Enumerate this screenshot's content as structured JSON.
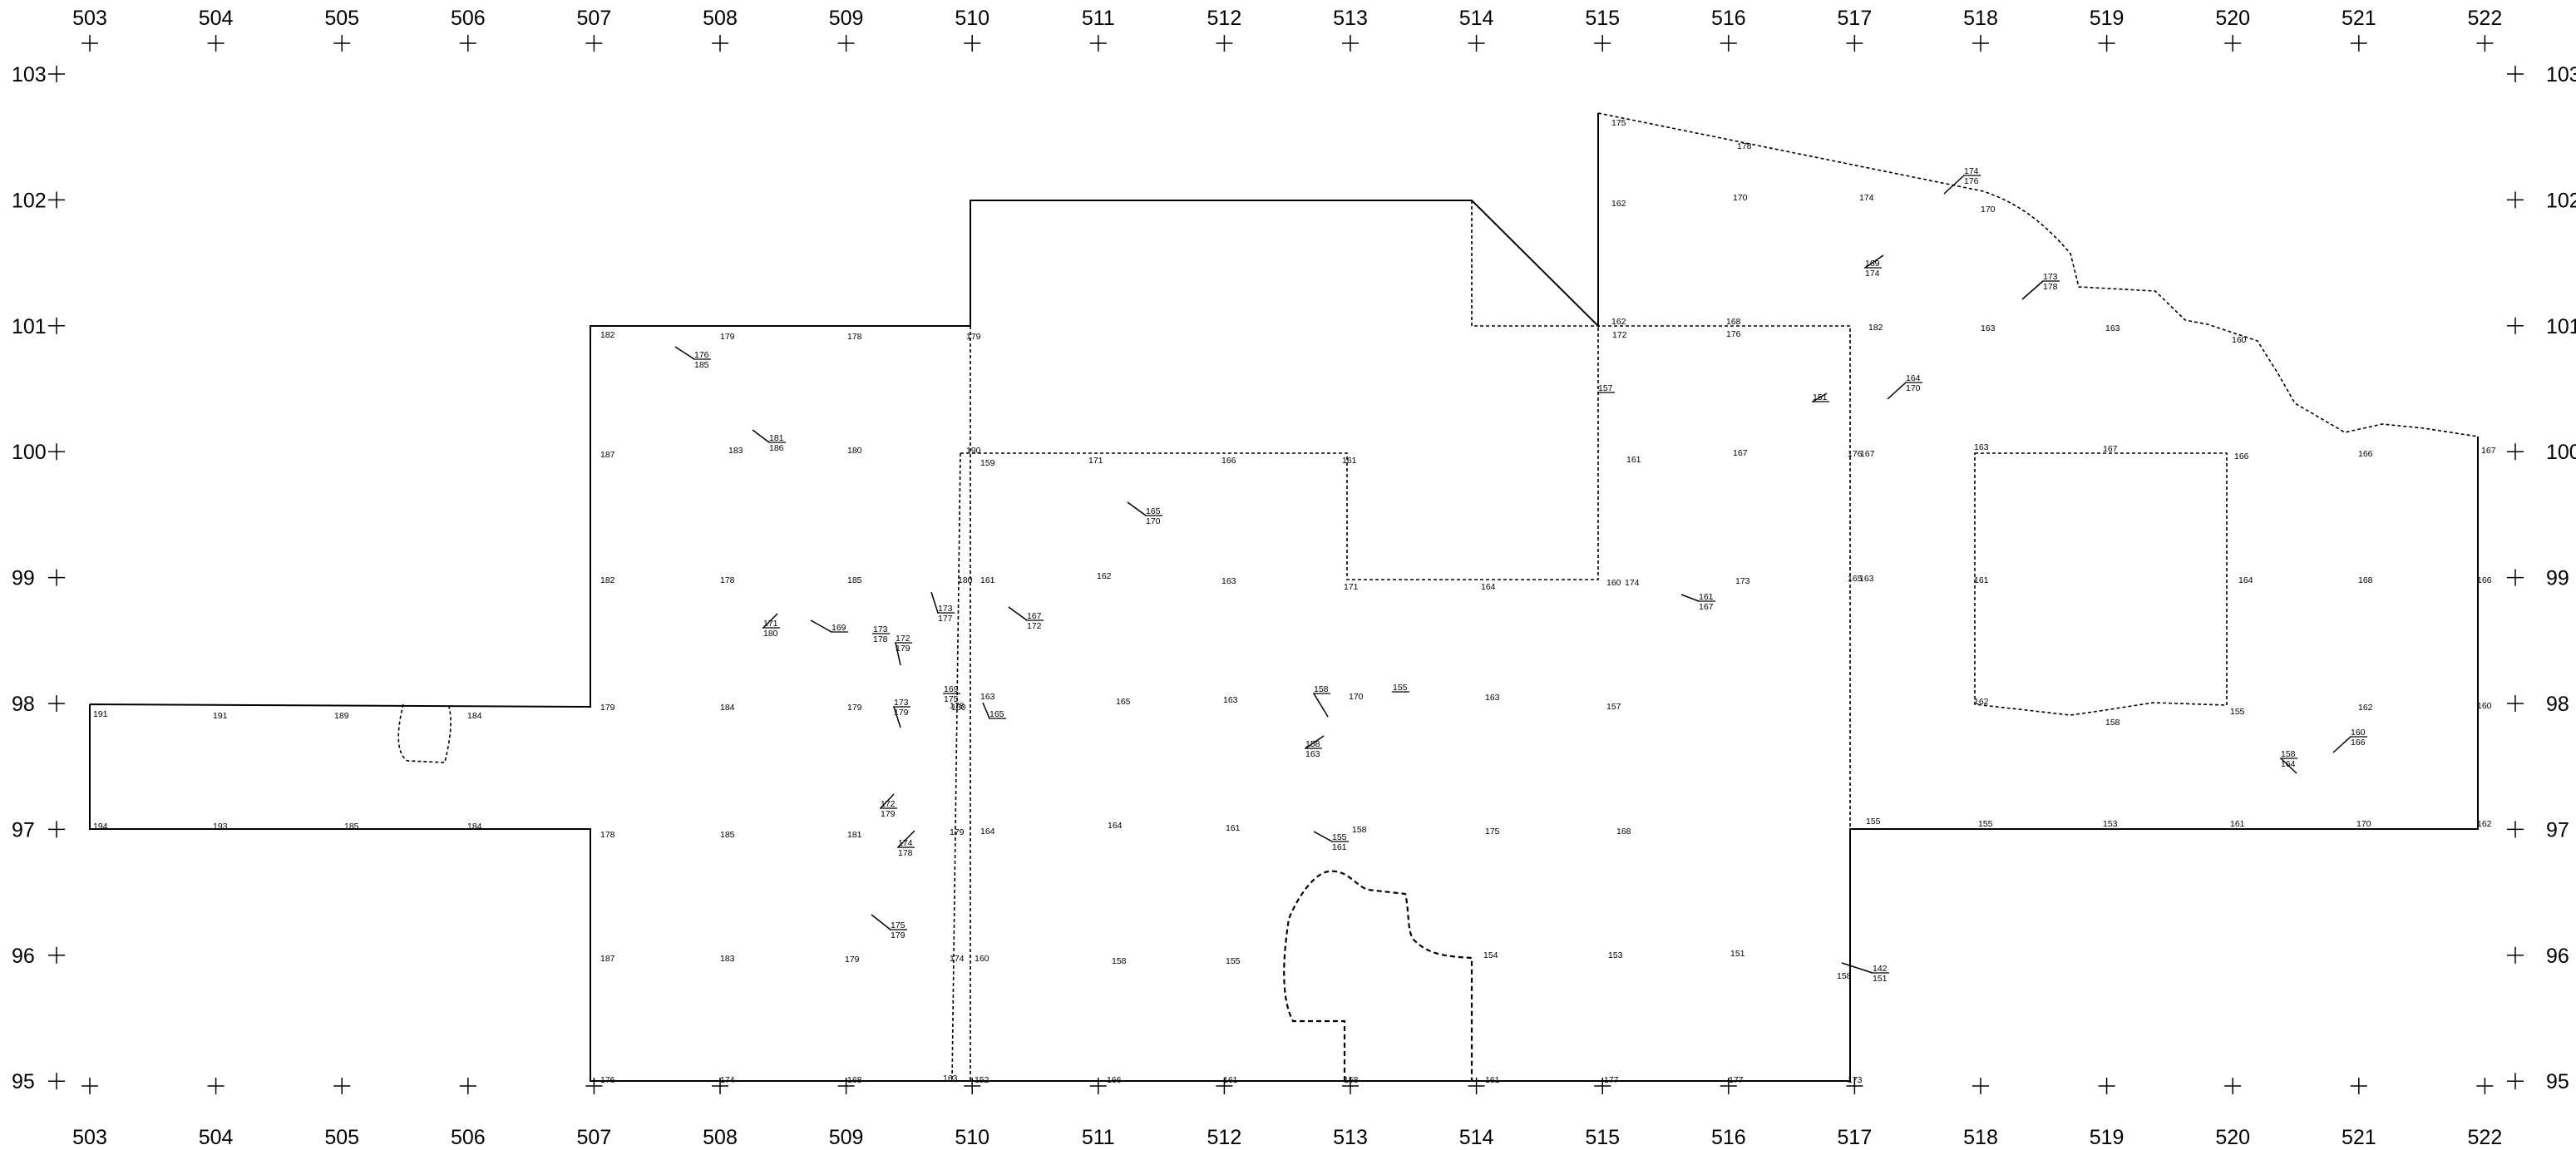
{
  "x_axis": {
    "values": [
      "503",
      "504",
      "505",
      "506",
      "507",
      "508",
      "509",
      "510",
      "511",
      "512",
      "513",
      "514",
      "515",
      "516",
      "517",
      "518",
      "519",
      "520",
      "521",
      "522"
    ]
  },
  "y_axis": {
    "values": [
      "103",
      "102",
      "101",
      "100",
      "99",
      "98",
      "97",
      "96",
      "95"
    ]
  },
  "spot_elevations": [
    "191",
    "191",
    "189",
    "184",
    "194",
    "193",
    "185",
    "184",
    "182",
    "179",
    "178",
    "179",
    "187",
    "183",
    "180",
    "190",
    "182",
    "178",
    "185",
    "180",
    "179",
    "184",
    "179",
    "178",
    "178",
    "185",
    "181",
    "179",
    "187",
    "183",
    "179",
    "174",
    "176",
    "174",
    "168",
    "163",
    "159",
    "171",
    "166",
    "161",
    "161",
    "162",
    "163",
    "171",
    "164",
    "160",
    "163",
    "165",
    "163",
    "170",
    "163",
    "157",
    "164",
    "164",
    "161",
    "158",
    "175",
    "168",
    "160",
    "160",
    "158",
    "155",
    "154",
    "153",
    "151",
    "152",
    "166",
    "161",
    "158",
    "161",
    "177",
    "177",
    "173",
    "175",
    "178",
    "174",
    "170",
    "170",
    "162",
    "162",
    "168",
    "172",
    "176",
    "182",
    "163",
    "163",
    "160",
    "161",
    "167",
    "176",
    "167",
    "163",
    "167",
    "166",
    "166",
    "167",
    "174",
    "173",
    "165",
    "163",
    "161",
    "164",
    "168",
    "166",
    "162",
    "158",
    "155",
    "162",
    "160",
    "155",
    "155",
    "153",
    "161",
    "170",
    "162",
    "158",
    "167",
    "160",
    "155",
    "163"
  ],
  "fraction_labels": [
    {
      "top": "176",
      "bottom": "185"
    },
    {
      "top": "181",
      "bottom": "186"
    },
    {
      "top": "171",
      "bottom": "180"
    },
    {
      "top": "169",
      "bottom": ""
    },
    {
      "top": "173",
      "bottom": "178"
    },
    {
      "top": "172",
      "bottom": "179"
    },
    {
      "top": "173",
      "bottom": "177"
    },
    {
      "top": "167",
      "bottom": "172"
    },
    {
      "top": "165",
      "bottom": "170"
    },
    {
      "top": "169",
      "bottom": "175"
    },
    {
      "top": "173",
      "bottom": "179"
    },
    {
      "top": "165",
      "bottom": ""
    },
    {
      "top": "172",
      "bottom": "179"
    },
    {
      "top": "174",
      "bottom": "178"
    },
    {
      "top": "175",
      "bottom": "179"
    },
    {
      "top": "158",
      "bottom": ""
    },
    {
      "top": "155",
      "bottom": ""
    },
    {
      "top": "158",
      "bottom": "163"
    },
    {
      "top": "155",
      "bottom": "161"
    },
    {
      "top": "161",
      "bottom": "167"
    },
    {
      "top": "142",
      "bottom": "151"
    },
    {
      "top": "174",
      "bottom": "176"
    },
    {
      "top": "169",
      "bottom": "174"
    },
    {
      "top": "173",
      "bottom": "178"
    },
    {
      "top": "164",
      "bottom": "170"
    },
    {
      "top": "151",
      "bottom": ""
    },
    {
      "top": "157",
      "bottom": ""
    },
    {
      "top": "160",
      "bottom": "166"
    },
    {
      "top": "158",
      "bottom": "164"
    }
  ]
}
